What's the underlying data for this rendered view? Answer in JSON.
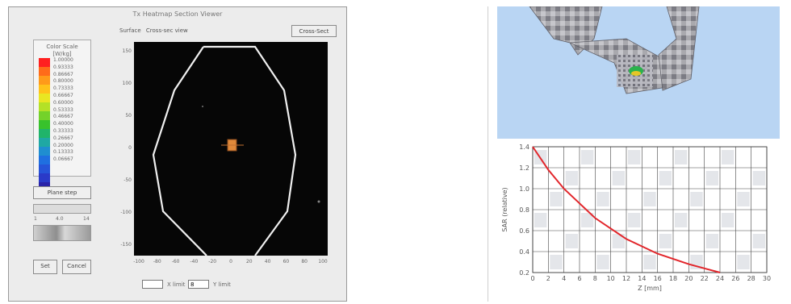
{
  "window": {
    "title": "Tx Heatmap Section Viewer",
    "plot_header_label": "Surface",
    "plot_header_value": "Cross-sec view",
    "top_button": "Cross-Sect"
  },
  "colorbar": {
    "title": "Color Scale",
    "unit": "[W/kg]",
    "values": [
      "1.00000",
      "0.93333",
      "0.86667",
      "0.80000",
      "0.73333",
      "0.66667",
      "0.60000",
      "0.53333",
      "0.46667",
      "0.40000",
      "0.33333",
      "0.26667",
      "0.20000",
      "0.13333",
      "0.06667"
    ],
    "colors": [
      "#ff2020",
      "#ff6b1a",
      "#ff9a1a",
      "#ffc21a",
      "#e9e622",
      "#b4e126",
      "#74d22a",
      "#38c22c",
      "#20b46a",
      "#1fa8a4",
      "#1f8ed0",
      "#1f6fe0",
      "#2654d8",
      "#2a3ac8",
      "#2a23a8"
    ]
  },
  "controls": {
    "group_label": "Plane step",
    "range_min": "1",
    "range_max": "14",
    "range_mid": "4.0",
    "ok_button": "Set",
    "cancel_button": "Cancel",
    "x_value": "",
    "x_label": "X limit",
    "y_value": "8",
    "y_label": "Y limit"
  },
  "cross_section": {
    "y_ticks": [
      "150",
      "100",
      "50",
      "0",
      "-50",
      "-100",
      "-150"
    ],
    "x_ticks": [
      "-100",
      "-80",
      "-60",
      "-40",
      "-20",
      "0",
      "20",
      "40",
      "60",
      "80",
      "100"
    ]
  },
  "colors": {
    "plot_background": "#060606",
    "contour": "#f0f0f0",
    "hotspot": "#e0893a",
    "curve": "#e2262b",
    "sky": "#b9d5f3"
  },
  "chart_data": {
    "type": "line",
    "xlabel": "Z [mm]",
    "ylabel": "SAR (relative)",
    "x_ticks": [
      "0",
      "2",
      "4",
      "6",
      "8",
      "10",
      "12",
      "14",
      "16",
      "18",
      "20",
      "22",
      "24",
      "26",
      "28",
      "30"
    ],
    "y_ticks": [
      "1.4",
      "1.2",
      "1.0",
      "0.8",
      "0.6",
      "0.4",
      "0.2"
    ],
    "xlim": [
      0,
      30
    ],
    "ylim": [
      0.2,
      1.4
    ],
    "grid": true,
    "series": [
      {
        "x": [
          0,
          2,
          4,
          6,
          8,
          10,
          12,
          14,
          16,
          18,
          20,
          22,
          24
        ],
        "y": [
          1.4,
          1.18,
          1.0,
          0.86,
          0.72,
          0.62,
          0.52,
          0.45,
          0.38,
          0.33,
          0.28,
          0.24,
          0.2
        ]
      }
    ]
  }
}
